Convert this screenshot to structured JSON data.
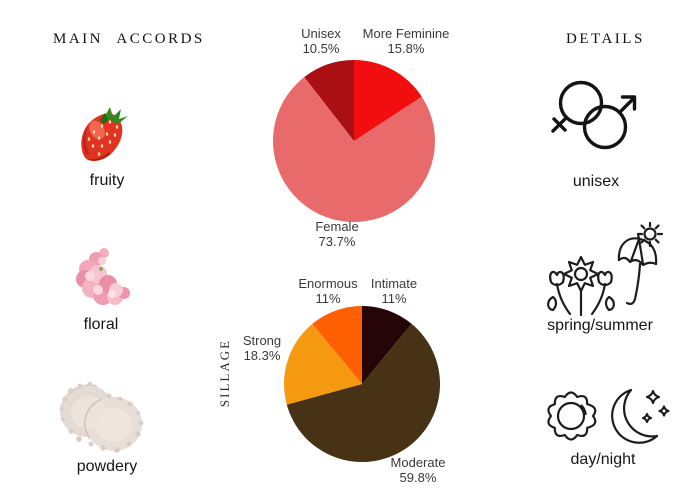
{
  "accords": {
    "header": "MAIN ACCORDS",
    "items": [
      {
        "label": "fruity",
        "image": "strawberry-photo"
      },
      {
        "label": "floral",
        "image": "pink-carnation-photo"
      },
      {
        "label": "powdery",
        "image": "cosmetic-powder-photo"
      }
    ]
  },
  "details": {
    "header": "DETAILS",
    "items": [
      {
        "label": "unisex",
        "icon": "male-female-symbols-icon"
      },
      {
        "label": "spring/summer",
        "icon": "flowers-umbrella-sun-icon"
      },
      {
        "label": "day/night",
        "icon": "sun-and-moon-icon"
      }
    ]
  },
  "chart_data": [
    {
      "type": "pie",
      "name": "gender",
      "title": "",
      "start_angle_deg": 90,
      "direction": "clockwise",
      "legend": "none",
      "slices": [
        {
          "label": "More Feminine",
          "pct_text": "15.8%",
          "value": 15.8,
          "color": "#f20d0e"
        },
        {
          "label": "Female",
          "pct_text": "73.7%",
          "value": 73.7,
          "color": "#e96a6b"
        },
        {
          "label": "Unisex",
          "pct_text": "10.5%",
          "value": 10.5,
          "color": "#a90f13"
        }
      ]
    },
    {
      "type": "pie",
      "name": "sillage",
      "axis_label": "SILLAGE",
      "start_angle_deg": 90,
      "direction": "clockwise",
      "legend": "none",
      "slices": [
        {
          "label": "Intimate",
          "pct_text": "11%",
          "value": 11.0,
          "color": "#260509"
        },
        {
          "label": "Moderate",
          "pct_text": "59.8%",
          "value": 59.8,
          "color": "#483216"
        },
        {
          "label": "Strong",
          "pct_text": "18.3%",
          "value": 18.3,
          "color": "#f59a10"
        },
        {
          "label": "Enormous",
          "pct_text": "11%",
          "value": 11.0,
          "color": "#fe5f02"
        }
      ]
    }
  ]
}
